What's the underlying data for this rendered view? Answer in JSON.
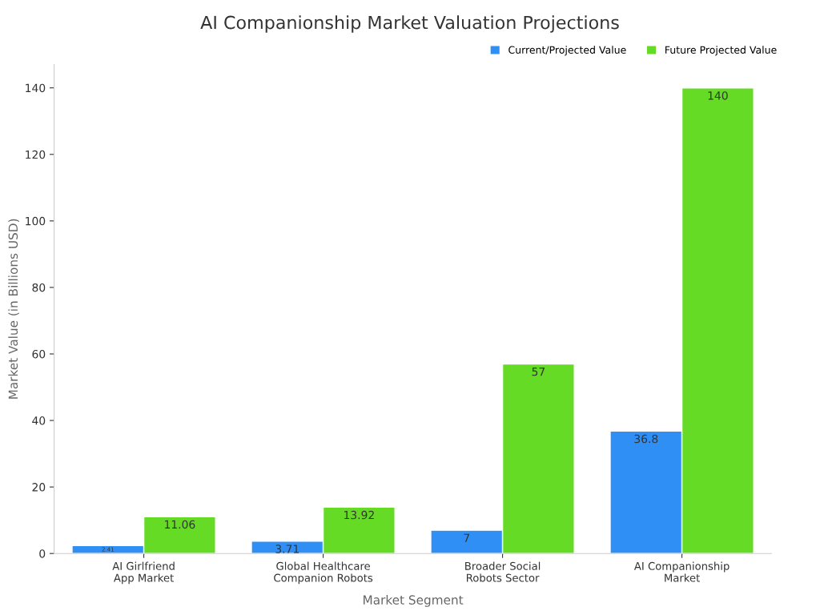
{
  "chart_data": {
    "type": "bar",
    "title": "AI Companionship Market Valuation Projections",
    "xlabel": "Market Segment",
    "ylabel": "Market Value (in Billions USD)",
    "categories": [
      "AI Girlfriend\nApp Market",
      "Global Healthcare\nCompanion Robots",
      "Broader Social\nRobots Sector",
      "AI Companionship\nMarket"
    ],
    "series": [
      {
        "name": "Current/Projected Value",
        "color": "#2f8ff5",
        "values": [
          2.41,
          3.71,
          7,
          36.8
        ],
        "value_labels": [
          "2.41",
          "3.71",
          "7",
          "36.8"
        ]
      },
      {
        "name": "Future Projected Value",
        "color": "#66db26",
        "values": [
          11.06,
          13.92,
          57,
          140
        ],
        "value_labels": [
          "11.06",
          "13.92",
          "57",
          "140"
        ]
      }
    ],
    "ylim": [
      0,
      147
    ],
    "yticks": [
      0,
      20,
      40,
      60,
      80,
      100,
      120,
      140
    ],
    "grid": false,
    "legend": "top right"
  }
}
